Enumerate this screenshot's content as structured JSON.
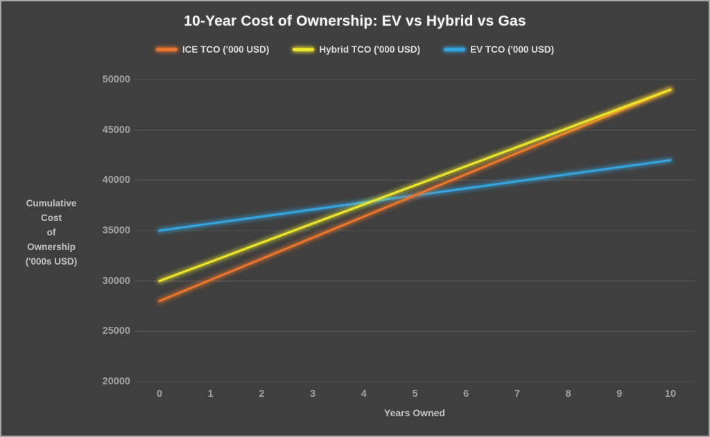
{
  "chart_data": {
    "type": "line",
    "title": "10-Year Cost of Ownership: EV vs Hybrid vs Gas",
    "xlabel": "Years Owned",
    "ylabel": "Cumulative Cost of Ownership ('000s USD)",
    "ylabel_display": "Cumulative\nCost\nof\nOwnership\n('000s USD)",
    "x": [
      0,
      1,
      2,
      3,
      4,
      5,
      6,
      7,
      8,
      9,
      10
    ],
    "xlim": [
      0,
      10
    ],
    "ylim": [
      20000,
      50000
    ],
    "yticks": [
      20000,
      25000,
      30000,
      35000,
      40000,
      45000,
      50000
    ],
    "grid": "horizontal",
    "legend_position": "top",
    "series": [
      {
        "name": "ICE TCO ('000 USD)",
        "color": "#E8752B",
        "values": [
          28000,
          30100,
          32200,
          34300,
          36400,
          38500,
          40600,
          42700,
          44800,
          46900,
          49000
        ]
      },
      {
        "name": "Hybrid TCO ('000 USD)",
        "color": "#EAE52B",
        "values": [
          30000,
          31900,
          33800,
          35700,
          37600,
          39500,
          41400,
          43300,
          45200,
          47100,
          49000
        ]
      },
      {
        "name": "EV TCO ('000 USD)",
        "color": "#35A3DC",
        "values": [
          35000,
          35700,
          36400,
          37100,
          37800,
          38500,
          39200,
          39900,
          40600,
          41300,
          42000
        ]
      }
    ]
  },
  "colors": {
    "background": "#3F3F3F",
    "frame_border": "#A9A9A9",
    "gridline": "#535353",
    "title_text": "#F5F5F5",
    "tick_text": "#9E9E9E",
    "axis_title_text": "#BFBFBF",
    "legend_text": "#D9D9D9"
  }
}
